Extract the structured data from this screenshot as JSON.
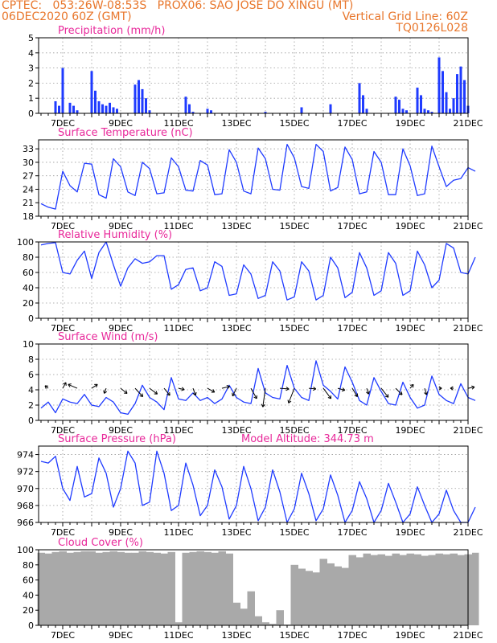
{
  "header": {
    "line1": "CPTEC:   053:26W-08:53S   PROX06: SAO JOSE DO XINGU (MT)",
    "line2_left": "06DEC2020 60Z (GMT)",
    "line2_right": "Vertical Grid Line: 60Z",
    "line3_right": "TQ0126L028"
  },
  "colors": {
    "header": "#e8762b",
    "panel_title": "#e8289a",
    "series": "#1f3bff",
    "cloud": "#a9a9a9",
    "grid": "#9a9a9a"
  },
  "x_axis": {
    "labels": [
      "7DEC",
      "9DEC",
      "11DEC",
      "13DEC",
      "15DEC",
      "17DEC",
      "19DEC",
      "21DEC"
    ]
  },
  "chart_data": [
    {
      "id": "precip",
      "type": "bar",
      "title": "Precipitation (mm/h)",
      "ylim": [
        0,
        5
      ],
      "yticks": [
        0,
        1,
        2,
        3,
        4,
        5
      ],
      "grid": true,
      "x": [
        "06DEC2020 18Z",
        "06DEC2020 21Z",
        "07DEC2020 00Z",
        "07DEC2020 06Z",
        "07DEC2020 09Z",
        "07DEC2020 12Z",
        "08DEC2020 00Z",
        "08DEC2020 03Z",
        "08DEC2020 06Z",
        "08DEC2020 09Z",
        "08DEC2020 12Z",
        "08DEC2020 15Z",
        "08DEC2020 18Z",
        "08DEC2020 21Z",
        "09DEC2020 12Z",
        "09DEC2020 15Z",
        "09DEC2020 18Z",
        "09DEC2020 21Z",
        "10DEC2020 00Z",
        "11DEC2020 06Z",
        "11DEC2020 09Z",
        "11DEC2020 12Z",
        "12DEC2020 00Z",
        "12DEC2020 03Z",
        "14DEC2020 00Z",
        "15DEC2020 06Z",
        "16DEC2020 06Z",
        "17DEC2020 06Z",
        "17DEC2020 09Z",
        "17DEC2020 12Z",
        "18DEC2020 12Z",
        "18DEC2020 15Z",
        "18DEC2020 18Z",
        "18DEC2020 21Z",
        "19DEC2020 06Z",
        "19DEC2020 09Z",
        "19DEC2020 12Z",
        "19DEC2020 15Z",
        "19DEC2020 18Z",
        "20DEC2020 00Z",
        "20DEC2020 03Z",
        "20DEC2020 06Z",
        "20DEC2020 09Z",
        "20DEC2020 12Z",
        "20DEC2020 15Z",
        "20DEC2020 18Z",
        "20DEC2020 21Z",
        "21DEC2020 00Z"
      ],
      "values": [
        0.8,
        0.5,
        3.0,
        0.7,
        0.5,
        0.2,
        2.8,
        1.5,
        0.8,
        0.6,
        0.5,
        0.7,
        0.4,
        0.3,
        1.9,
        2.2,
        1.6,
        1.0,
        0.2,
        1.1,
        0.6,
        0.1,
        0.3,
        0.2,
        0.1,
        0.4,
        0.6,
        2.0,
        1.2,
        0.3,
        1.1,
        0.9,
        0.3,
        0.2,
        1.7,
        1.2,
        0.3,
        0.2,
        0.1,
        3.7,
        2.8,
        1.4,
        0.3,
        1.0,
        2.6,
        3.1,
        2.2,
        0.5
      ]
    },
    {
      "id": "temp",
      "type": "line",
      "title": "Surface Temperature (nC)",
      "ylim": [
        18,
        35
      ],
      "yticks": [
        18,
        21,
        24,
        27,
        30,
        33
      ],
      "grid": true,
      "x": [
        "06DEC2020 06Z",
        "06DEC2020 12Z",
        "06DEC2020 18Z",
        "07DEC2020 00Z",
        "07DEC2020 06Z",
        "07DEC2020 12Z",
        "07DEC2020 18Z",
        "08DEC2020 00Z",
        "08DEC2020 06Z",
        "08DEC2020 12Z",
        "08DEC2020 18Z",
        "09DEC2020 00Z",
        "09DEC2020 06Z",
        "09DEC2020 12Z",
        "09DEC2020 18Z",
        "10DEC2020 00Z",
        "10DEC2020 06Z",
        "10DEC2020 12Z",
        "10DEC2020 18Z",
        "11DEC2020 00Z",
        "11DEC2020 06Z",
        "11DEC2020 12Z",
        "11DEC2020 18Z",
        "12DEC2020 00Z",
        "12DEC2020 06Z",
        "12DEC2020 12Z",
        "12DEC2020 18Z",
        "13DEC2020 00Z",
        "13DEC2020 06Z",
        "13DEC2020 12Z",
        "13DEC2020 18Z",
        "14DEC2020 00Z",
        "14DEC2020 06Z",
        "14DEC2020 12Z",
        "14DEC2020 18Z",
        "15DEC2020 00Z",
        "15DEC2020 06Z",
        "15DEC2020 12Z",
        "15DEC2020 18Z",
        "16DEC2020 00Z",
        "16DEC2020 06Z",
        "16DEC2020 12Z",
        "16DEC2020 18Z",
        "17DEC2020 00Z",
        "17DEC2020 06Z",
        "17DEC2020 12Z",
        "17DEC2020 18Z",
        "18DEC2020 00Z",
        "18DEC2020 06Z",
        "18DEC2020 12Z",
        "18DEC2020 18Z",
        "19DEC2020 00Z",
        "19DEC2020 06Z",
        "19DEC2020 12Z",
        "19DEC2020 18Z",
        "20DEC2020 00Z",
        "20DEC2020 06Z",
        "20DEC2020 12Z",
        "20DEC2020 18Z",
        "21DEC2020 00Z",
        "21DEC2020 06Z"
      ],
      "values": [
        20.8,
        20.0,
        19.6,
        28.0,
        24.8,
        23.4,
        29.8,
        29.6,
        22.8,
        22.0,
        30.8,
        29.0,
        23.4,
        22.6,
        30.0,
        28.6,
        23.0,
        23.2,
        31.0,
        29.0,
        23.8,
        23.6,
        30.4,
        29.4,
        22.8,
        23.0,
        32.8,
        30.0,
        23.6,
        23.0,
        33.2,
        30.8,
        24.0,
        23.8,
        34.0,
        31.0,
        24.6,
        24.2,
        34.0,
        32.4,
        23.6,
        24.4,
        33.4,
        30.6,
        23.0,
        23.4,
        32.4,
        30.0,
        22.8,
        22.8,
        33.0,
        29.2,
        22.6,
        23.0,
        33.6,
        29.0,
        24.6,
        26.0,
        26.4,
        28.8,
        28.0
      ]
    },
    {
      "id": "rh",
      "type": "line",
      "title": "Relative Humidity (%)",
      "ylim": [
        0,
        100
      ],
      "yticks": [
        0,
        20,
        40,
        60,
        80,
        100
      ],
      "grid": true,
      "x": [
        "06DEC2020 06Z",
        "06DEC2020 12Z",
        "06DEC2020 18Z",
        "07DEC2020 00Z",
        "07DEC2020 06Z",
        "07DEC2020 12Z",
        "07DEC2020 18Z",
        "08DEC2020 00Z",
        "08DEC2020 06Z",
        "08DEC2020 12Z",
        "08DEC2020 18Z",
        "09DEC2020 00Z",
        "09DEC2020 06Z",
        "09DEC2020 12Z",
        "09DEC2020 18Z",
        "10DEC2020 00Z",
        "10DEC2020 06Z",
        "10DEC2020 12Z",
        "10DEC2020 18Z",
        "11DEC2020 00Z",
        "11DEC2020 06Z",
        "11DEC2020 12Z",
        "11DEC2020 18Z",
        "12DEC2020 00Z",
        "12DEC2020 06Z",
        "12DEC2020 12Z",
        "12DEC2020 18Z",
        "13DEC2020 00Z",
        "13DEC2020 06Z",
        "13DEC2020 12Z",
        "13DEC2020 18Z",
        "14DEC2020 00Z",
        "14DEC2020 06Z",
        "14DEC2020 12Z",
        "14DEC2020 18Z",
        "15DEC2020 00Z",
        "15DEC2020 06Z",
        "15DEC2020 12Z",
        "15DEC2020 18Z",
        "16DEC2020 00Z",
        "16DEC2020 06Z",
        "16DEC2020 12Z",
        "16DEC2020 18Z",
        "17DEC2020 00Z",
        "17DEC2020 06Z",
        "17DEC2020 12Z",
        "17DEC2020 18Z",
        "18DEC2020 00Z",
        "18DEC2020 06Z",
        "18DEC2020 12Z",
        "18DEC2020 18Z",
        "19DEC2020 00Z",
        "19DEC2020 06Z",
        "19DEC2020 12Z",
        "19DEC2020 18Z",
        "20DEC2020 00Z",
        "20DEC2020 06Z",
        "20DEC2020 12Z",
        "20DEC2020 18Z",
        "21DEC2020 00Z",
        "21DEC2020 06Z"
      ],
      "values": [
        96,
        98,
        99,
        60,
        58,
        76,
        88,
        52,
        86,
        100,
        70,
        42,
        66,
        78,
        72,
        74,
        82,
        82,
        38,
        44,
        64,
        66,
        36,
        40,
        74,
        68,
        30,
        32,
        70,
        58,
        26,
        30,
        74,
        62,
        24,
        28,
        74,
        62,
        24,
        30,
        80,
        66,
        27,
        34,
        86,
        66,
        30,
        36,
        86,
        72,
        30,
        36,
        88,
        70,
        40,
        50,
        98,
        92,
        60,
        58,
        80
      ]
    },
    {
      "id": "wind",
      "type": "line",
      "title": "Surface Wind (m/s)",
      "ylim": [
        0,
        10
      ],
      "yticks": [
        0,
        2,
        4,
        6,
        8,
        10
      ],
      "grid": true,
      "x": [
        "06DEC2020 06Z",
        "06DEC2020 12Z",
        "06DEC2020 18Z",
        "07DEC2020 00Z",
        "07DEC2020 06Z",
        "07DEC2020 12Z",
        "07DEC2020 18Z",
        "08DEC2020 00Z",
        "08DEC2020 06Z",
        "08DEC2020 12Z",
        "08DEC2020 18Z",
        "09DEC2020 00Z",
        "09DEC2020 06Z",
        "09DEC2020 12Z",
        "09DEC2020 18Z",
        "10DEC2020 00Z",
        "10DEC2020 06Z",
        "10DEC2020 12Z",
        "10DEC2020 18Z",
        "11DEC2020 00Z",
        "11DEC2020 06Z",
        "11DEC2020 12Z",
        "11DEC2020 18Z",
        "12DEC2020 00Z",
        "12DEC2020 06Z",
        "12DEC2020 12Z",
        "12DEC2020 18Z",
        "13DEC2020 00Z",
        "13DEC2020 06Z",
        "13DEC2020 12Z",
        "13DEC2020 18Z",
        "14DEC2020 00Z",
        "14DEC2020 06Z",
        "14DEC2020 12Z",
        "14DEC2020 18Z",
        "15DEC2020 00Z",
        "15DEC2020 06Z",
        "15DEC2020 12Z",
        "15DEC2020 18Z",
        "16DEC2020 00Z",
        "16DEC2020 06Z",
        "16DEC2020 12Z",
        "16DEC2020 18Z",
        "17DEC2020 00Z",
        "17DEC2020 06Z",
        "17DEC2020 12Z",
        "17DEC2020 18Z",
        "18DEC2020 00Z",
        "18DEC2020 06Z",
        "18DEC2020 12Z",
        "18DEC2020 18Z",
        "19DEC2020 00Z",
        "19DEC2020 06Z",
        "19DEC2020 12Z",
        "19DEC2020 18Z",
        "20DEC2020 00Z",
        "20DEC2020 06Z",
        "20DEC2020 12Z",
        "20DEC2020 18Z",
        "21DEC2020 00Z",
        "21DEC2020 06Z"
      ],
      "values": [
        1.6,
        2.4,
        1.0,
        2.8,
        2.4,
        2.2,
        3.4,
        2.0,
        1.8,
        3.0,
        2.4,
        1.0,
        0.8,
        2.2,
        4.6,
        3.0,
        2.4,
        1.4,
        5.6,
        2.8,
        2.6,
        3.6,
        2.6,
        3.0,
        2.2,
        2.8,
        4.6,
        3.0,
        2.4,
        2.2,
        6.8,
        3.6,
        3.0,
        2.8,
        7.2,
        4.2,
        3.0,
        2.6,
        7.8,
        4.6,
        3.8,
        2.8,
        7.0,
        5.0,
        2.6,
        2.0,
        5.6,
        3.8,
        2.2,
        2.0,
        5.0,
        3.0,
        1.6,
        2.0,
        5.8,
        3.4,
        2.6,
        2.2,
        4.8,
        3.0,
        2.6
      ]
    },
    {
      "id": "pressure",
      "type": "line",
      "title": "Surface Pressure (hPa)",
      "annotation": "Model Altitude: 344.73 m",
      "ylim": [
        966,
        975
      ],
      "yticks": [
        966,
        968,
        970,
        972,
        974
      ],
      "grid": true,
      "x": [
        "06DEC2020 06Z",
        "06DEC2020 12Z",
        "06DEC2020 18Z",
        "07DEC2020 00Z",
        "07DEC2020 06Z",
        "07DEC2020 12Z",
        "07DEC2020 18Z",
        "08DEC2020 00Z",
        "08DEC2020 06Z",
        "08DEC2020 12Z",
        "08DEC2020 18Z",
        "09DEC2020 00Z",
        "09DEC2020 06Z",
        "09DEC2020 12Z",
        "09DEC2020 18Z",
        "10DEC2020 00Z",
        "10DEC2020 06Z",
        "10DEC2020 12Z",
        "10DEC2020 18Z",
        "11DEC2020 00Z",
        "11DEC2020 06Z",
        "11DEC2020 12Z",
        "11DEC2020 18Z",
        "12DEC2020 00Z",
        "12DEC2020 06Z",
        "12DEC2020 12Z",
        "12DEC2020 18Z",
        "13DEC2020 00Z",
        "13DEC2020 06Z",
        "13DEC2020 12Z",
        "13DEC2020 18Z",
        "14DEC2020 00Z",
        "14DEC2020 06Z",
        "14DEC2020 12Z",
        "14DEC2020 18Z",
        "15DEC2020 00Z",
        "15DEC2020 06Z",
        "15DEC2020 12Z",
        "15DEC2020 18Z",
        "16DEC2020 00Z",
        "16DEC2020 06Z",
        "16DEC2020 12Z",
        "16DEC2020 18Z",
        "17DEC2020 00Z",
        "17DEC2020 06Z",
        "17DEC2020 12Z",
        "17DEC2020 18Z",
        "18DEC2020 00Z",
        "18DEC2020 06Z",
        "18DEC2020 12Z",
        "18DEC2020 18Z",
        "19DEC2020 00Z",
        "19DEC2020 06Z",
        "19DEC2020 12Z",
        "19DEC2020 18Z",
        "20DEC2020 00Z",
        "20DEC2020 06Z",
        "20DEC2020 12Z",
        "20DEC2020 18Z",
        "21DEC2020 00Z",
        "21DEC2020 06Z"
      ],
      "values": [
        973.2,
        973.0,
        973.8,
        970.0,
        968.6,
        972.6,
        969.0,
        969.4,
        973.6,
        971.8,
        967.8,
        970.0,
        974.4,
        973.0,
        968.0,
        968.4,
        974.4,
        971.8,
        967.4,
        968.0,
        973.0,
        970.4,
        966.8,
        968.0,
        972.2,
        970.2,
        966.4,
        968.0,
        972.6,
        970.0,
        966.2,
        967.8,
        972.2,
        969.6,
        966.0,
        967.6,
        971.8,
        969.4,
        966.2,
        967.6,
        971.6,
        969.2,
        966.0,
        967.4,
        970.8,
        968.8,
        966.0,
        967.4,
        970.6,
        968.4,
        966.0,
        967.0,
        970.2,
        968.0,
        966.0,
        967.0,
        969.8,
        967.4,
        966.0,
        966.0,
        967.8
      ]
    },
    {
      "id": "cloud",
      "type": "area",
      "title": "Cloud Cover (%)",
      "ylim": [
        0,
        100
      ],
      "yticks": [
        0,
        20,
        40,
        60,
        80,
        100
      ],
      "grid": false,
      "x": [
        "06DEC2020 06Z",
        "06DEC2020 12Z",
        "06DEC2020 18Z",
        "07DEC2020 00Z",
        "07DEC2020 06Z",
        "07DEC2020 12Z",
        "07DEC2020 18Z",
        "08DEC2020 00Z",
        "08DEC2020 06Z",
        "08DEC2020 12Z",
        "08DEC2020 18Z",
        "09DEC2020 00Z",
        "09DEC2020 06Z",
        "09DEC2020 12Z",
        "09DEC2020 18Z",
        "10DEC2020 00Z",
        "10DEC2020 06Z",
        "10DEC2020 12Z",
        "10DEC2020 18Z",
        "11DEC2020 00Z",
        "11DEC2020 06Z",
        "11DEC2020 12Z",
        "11DEC2020 18Z",
        "12DEC2020 00Z",
        "12DEC2020 06Z",
        "12DEC2020 12Z",
        "12DEC2020 18Z",
        "13DEC2020 00Z",
        "13DEC2020 06Z",
        "13DEC2020 12Z",
        "13DEC2020 18Z",
        "14DEC2020 00Z",
        "14DEC2020 06Z",
        "14DEC2020 12Z",
        "14DEC2020 18Z",
        "15DEC2020 00Z",
        "15DEC2020 06Z",
        "15DEC2020 12Z",
        "15DEC2020 18Z",
        "16DEC2020 00Z",
        "16DEC2020 06Z",
        "16DEC2020 12Z",
        "16DEC2020 18Z",
        "17DEC2020 00Z",
        "17DEC2020 06Z",
        "17DEC2020 12Z",
        "17DEC2020 18Z",
        "18DEC2020 00Z",
        "18DEC2020 06Z",
        "18DEC2020 12Z",
        "18DEC2020 18Z",
        "19DEC2020 00Z",
        "19DEC2020 06Z",
        "19DEC2020 12Z",
        "19DEC2020 18Z",
        "20DEC2020 00Z",
        "20DEC2020 06Z",
        "20DEC2020 12Z",
        "20DEC2020 18Z",
        "21DEC2020 00Z",
        "21DEC2020 06Z"
      ],
      "values": [
        96,
        95,
        97,
        98,
        96,
        97,
        98,
        98,
        96,
        97,
        98,
        97,
        96,
        96,
        98,
        97,
        96,
        95,
        97,
        4,
        96,
        97,
        98,
        97,
        96,
        98,
        95,
        30,
        22,
        45,
        12,
        4,
        2,
        20,
        1,
        80,
        75,
        72,
        70,
        88,
        82,
        78,
        76,
        93,
        90,
        95,
        93,
        94,
        92,
        95,
        93,
        95,
        94,
        92,
        93,
        95,
        94,
        95,
        93,
        94,
        96
      ]
    }
  ],
  "wind_vectors": {
    "x": [
      "06DEC2020 12Z",
      "07DEC2020 00Z",
      "07DEC2020 12Z",
      "08DEC2020 00Z",
      "08DEC2020 12Z",
      "09DEC2020 00Z",
      "09DEC2020 12Z",
      "10DEC2020 00Z",
      "10DEC2020 12Z",
      "11DEC2020 00Z",
      "11DEC2020 12Z",
      "12DEC2020 00Z",
      "12DEC2020 12Z",
      "13DEC2020 00Z",
      "13DEC2020 12Z",
      "14DEC2020 00Z",
      "14DEC2020 12Z",
      "15DEC2020 00Z",
      "15DEC2020 12Z",
      "16DEC2020 00Z",
      "16DEC2020 12Z",
      "17DEC2020 00Z",
      "17DEC2020 12Z",
      "18DEC2020 00Z",
      "18DEC2020 12Z",
      "19DEC2020 00Z",
      "19DEC2020 12Z",
      "20DEC2020 00Z",
      "20DEC2020 12Z",
      "21DEC2020 00Z"
    ],
    "u": [
      -0.5,
      0.5,
      -1.4,
      0.9,
      -0.3,
      1.0,
      1.2,
      1.2,
      0.9,
      0.9,
      0.4,
      1.1,
      1.2,
      -0.6,
      0.9,
      -0.4,
      1.4,
      -0.9,
      1.1,
      1.2,
      1.1,
      0.8,
      0.3,
      1.1,
      1.0,
      0.5,
      0.3,
      0.4,
      -0.5,
      1.0
    ],
    "v": [
      0.4,
      0.9,
      0.6,
      0.6,
      -0.8,
      -0.8,
      -1.3,
      -0.9,
      -1.1,
      -0.2,
      -1.1,
      -0.6,
      0.3,
      -1.2,
      -1.6,
      -2.9,
      -0.1,
      -2.3,
      -0.1,
      -1.6,
      -0.3,
      -1.3,
      -0.9,
      -1.4,
      -1.0,
      0.6,
      -1.0,
      0.0,
      0.0,
      0.2
    ]
  }
}
